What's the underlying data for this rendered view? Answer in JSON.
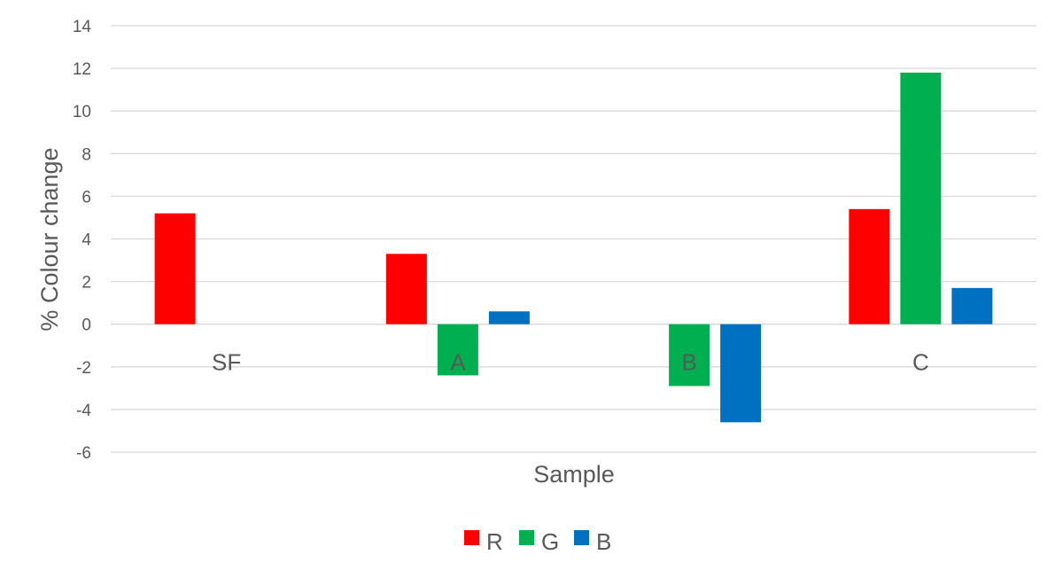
{
  "chart_data": {
    "type": "bar",
    "categories": [
      "SF",
      "A",
      "B",
      "C"
    ],
    "series": [
      {
        "name": "R",
        "color": "#ff0000",
        "values": [
          5.2,
          3.3,
          0,
          5.4
        ]
      },
      {
        "name": "G",
        "color": "#00b050",
        "values": [
          0,
          -2.4,
          -2.9,
          11.8
        ]
      },
      {
        "name": "B",
        "color": "#0070c0",
        "values": [
          0,
          0.6,
          -4.6,
          1.7
        ]
      }
    ],
    "title": "",
    "xlabel": "Sample",
    "ylabel": "% Colour change",
    "ylim": [
      -6,
      14
    ],
    "yticks": [
      -6,
      -4,
      -2,
      0,
      2,
      4,
      6,
      8,
      10,
      12,
      14
    ],
    "grid": true,
    "legend": "bottom"
  }
}
